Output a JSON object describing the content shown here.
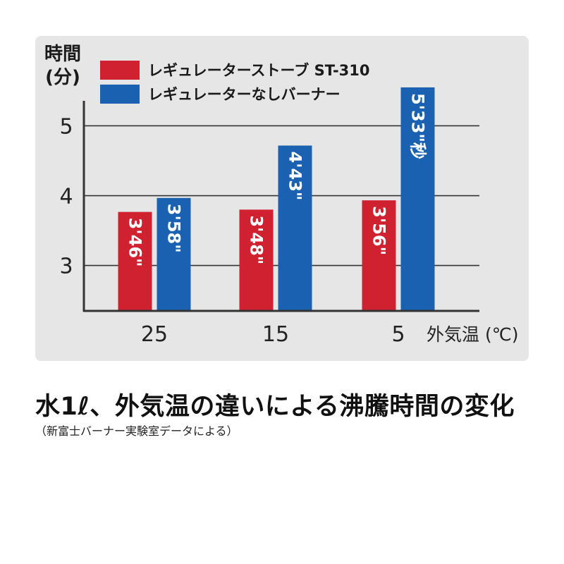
{
  "colors": {
    "panel_bg": "#e6e6e6",
    "axis": "#333333",
    "grid": "#333333",
    "st310": "#cf2130",
    "other": "#1a62b1",
    "bar_label": "#ffffff"
  },
  "chart_data": {
    "type": "bar",
    "ylabel": "時間(分)",
    "ylabel_lines": [
      "時間",
      "(分)"
    ],
    "xlabel": "外気温 (℃)",
    "categories": [
      "25",
      "15",
      "5"
    ],
    "yticks": [
      "3",
      "4",
      "5"
    ],
    "ylim": [
      2.35,
      5.6
    ],
    "grid": true,
    "legend_position": "top-left",
    "series": [
      {
        "name": "レギュレーターストーブ ST-310",
        "values": [
          3.767,
          3.8,
          3.933
        ],
        "labels": [
          "3'46\"",
          "3'48\"",
          "3'56\""
        ]
      },
      {
        "name": "レギュレーターなしバーナー",
        "values": [
          3.967,
          4.717,
          5.55
        ],
        "labels": [
          "3'58\"",
          "4'43\"",
          "5'33\"秒"
        ]
      }
    ]
  },
  "caption": {
    "title": "水1ℓ、外気温の違いによる沸騰時間の変化",
    "source": "（新富士バーナー実験室データによる）"
  }
}
